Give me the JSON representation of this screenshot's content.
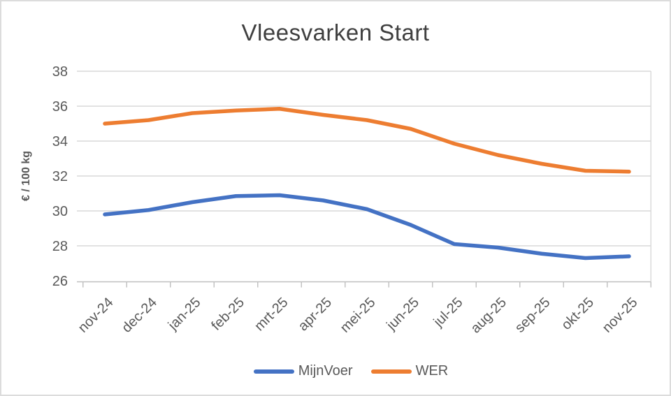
{
  "window": {
    "background": "#ffffff",
    "border_color": "#dcdcdc"
  },
  "chart_data": {
    "type": "line",
    "title": "Vleesvarken Start",
    "xlabel": "",
    "ylabel": "€ / 100 kg",
    "categories": [
      "nov-24",
      "dec-24",
      "jan-25",
      "feb-25",
      "mrt-25",
      "apr-25",
      "mei-25",
      "jun-25",
      "jul-25",
      "aug-25",
      "sep-25",
      "okt-25",
      "nov-25"
    ],
    "series": [
      {
        "name": "MijnVoer",
        "color": "#4472C4",
        "values": [
          29.8,
          30.05,
          30.5,
          30.85,
          30.9,
          30.6,
          30.1,
          29.2,
          28.1,
          27.9,
          27.55,
          27.3,
          27.4
        ]
      },
      {
        "name": "WER",
        "color": "#ED7D31",
        "values": [
          35.0,
          35.2,
          35.6,
          35.75,
          35.85,
          35.5,
          35.2,
          34.7,
          33.85,
          33.2,
          32.7,
          32.3,
          32.25
        ]
      }
    ],
    "ylim": [
      26,
      38
    ],
    "yticks": [
      26,
      28,
      30,
      32,
      34,
      36,
      38
    ],
    "grid": true,
    "legend_position": "bottom",
    "gridline_color": "#d9d9d9",
    "axis_color": "#bfbfbf",
    "text_color": "#595959",
    "title_color": "#3f3f3f"
  }
}
